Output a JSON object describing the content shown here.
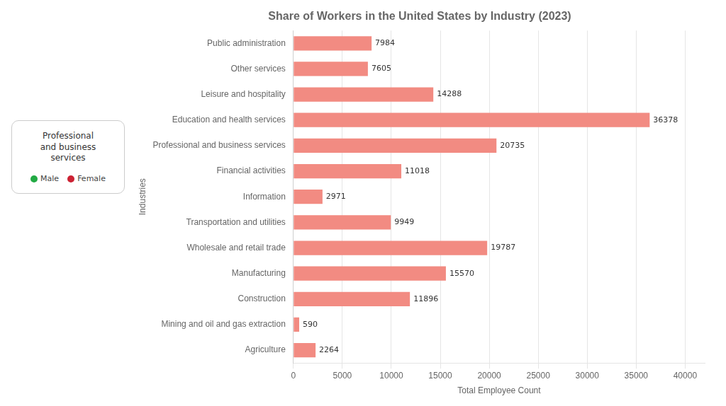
{
  "chart_data": {
    "type": "bar",
    "orientation": "horizontal",
    "title": "Share of Workers in the United States by Industry (2023)",
    "xlabel": "Total Employee Count",
    "ylabel": "Industries",
    "categories": [
      "Public administration",
      "Other services",
      "Leisure and hospitality",
      "Education and health services",
      "Professional and business services",
      "Financial activities",
      "Information",
      "Transportation and utilities",
      "Wholesale and retail trade",
      "Manufacturing",
      "Construction",
      "Mining and oil and gas extraction",
      "Agriculture"
    ],
    "values": [
      7984,
      7605,
      14288,
      36378,
      20735,
      11018,
      2971,
      9949,
      19787,
      15570,
      11896,
      590,
      2264
    ],
    "color": "#F28B82",
    "xlim": [
      0,
      42000
    ],
    "xticks": [
      0,
      5000,
      10000,
      15000,
      20000,
      25000,
      30000,
      35000,
      40000
    ],
    "grid": true,
    "data_labels": true,
    "annotations": [
      {
        "text": "Professional\nand business\nservices"
      },
      {
        "text": "Male",
        "color": "#22AA44"
      },
      {
        "text": "Female",
        "color": "#CC2233"
      }
    ]
  }
}
